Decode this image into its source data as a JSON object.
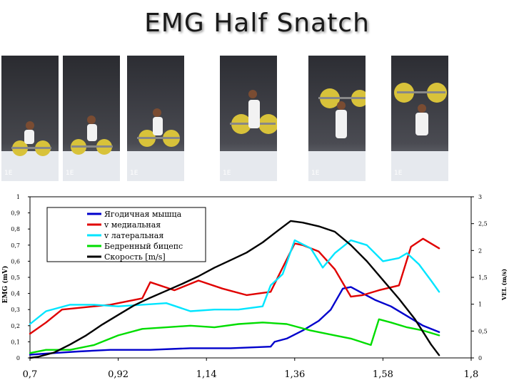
{
  "title": "EMG Half Snatch",
  "photos": [
    {
      "frame_label": "1E"
    },
    {
      "frame_label": "1E"
    },
    {
      "frame_label": "1E"
    },
    {
      "frame_label": "1E"
    },
    {
      "frame_label": "1E"
    },
    {
      "frame_label": "1E"
    }
  ],
  "colors": {
    "blue": "#0000cc",
    "red": "#e00000",
    "cyan": "#00e5ff",
    "green": "#00dd00",
    "black": "#000000"
  },
  "chart_data": {
    "type": "line",
    "title": "",
    "xlabel": "",
    "ylabel": "EMG (mV)",
    "y2label": "VEL (m/s)",
    "xlim": [
      0.7,
      1.8
    ],
    "ylim": [
      0,
      1
    ],
    "y2lim": [
      0,
      3
    ],
    "x_ticks": [
      "0,7",
      "0,92",
      "1,14",
      "1,36",
      "1,58",
      "1,8"
    ],
    "y_ticks": [
      "0",
      "0,1",
      "0,2",
      "0,3",
      "0,4",
      "0,5",
      "0,6",
      "0,7",
      "0,8",
      "0,9",
      "1"
    ],
    "y2_ticks": [
      "0",
      "0,5",
      "1",
      "1,5",
      "2",
      "2,5",
      "3"
    ],
    "legend_position": "top-left",
    "grid": false,
    "series": [
      {
        "name": "Ягодичная мышца",
        "axis": "left",
        "color": "#0000cc",
        "x": [
          0.7,
          0.76,
          0.82,
          0.9,
          1.0,
          1.1,
          1.2,
          1.3,
          1.31,
          1.34,
          1.38,
          1.42,
          1.45,
          1.48,
          1.5,
          1.53,
          1.56,
          1.6,
          1.64,
          1.68,
          1.72
        ],
        "y": [
          0.02,
          0.03,
          0.04,
          0.05,
          0.05,
          0.06,
          0.06,
          0.07,
          0.1,
          0.12,
          0.17,
          0.23,
          0.3,
          0.43,
          0.44,
          0.4,
          0.36,
          0.32,
          0.26,
          0.2,
          0.16
        ]
      },
      {
        "name": "v медиальная",
        "axis": "left",
        "color": "#e00000",
        "x": [
          0.7,
          0.74,
          0.78,
          0.82,
          0.86,
          0.9,
          0.94,
          0.98,
          1.0,
          1.06,
          1.12,
          1.18,
          1.24,
          1.3,
          1.32,
          1.36,
          1.38,
          1.42,
          1.46,
          1.5,
          1.53,
          1.57,
          1.62,
          1.65,
          1.68,
          1.72
        ],
        "y": [
          0.15,
          0.22,
          0.3,
          0.31,
          0.32,
          0.33,
          0.35,
          0.37,
          0.47,
          0.42,
          0.48,
          0.43,
          0.39,
          0.41,
          0.51,
          0.71,
          0.7,
          0.66,
          0.55,
          0.38,
          0.39,
          0.42,
          0.45,
          0.69,
          0.74,
          0.68
        ]
      },
      {
        "name": "v латеральная",
        "axis": "left",
        "color": "#00e5ff",
        "x": [
          0.7,
          0.74,
          0.8,
          0.86,
          0.92,
          0.98,
          1.04,
          1.1,
          1.16,
          1.22,
          1.28,
          1.3,
          1.33,
          1.36,
          1.4,
          1.43,
          1.46,
          1.5,
          1.54,
          1.58,
          1.62,
          1.64,
          1.67,
          1.7,
          1.72
        ],
        "y": [
          0.21,
          0.29,
          0.33,
          0.33,
          0.32,
          0.33,
          0.34,
          0.29,
          0.3,
          0.3,
          0.32,
          0.45,
          0.52,
          0.73,
          0.68,
          0.56,
          0.65,
          0.73,
          0.7,
          0.6,
          0.62,
          0.65,
          0.58,
          0.48,
          0.41
        ]
      },
      {
        "name": "Бедренный бицепс",
        "axis": "left",
        "color": "#00dd00",
        "x": [
          0.7,
          0.74,
          0.8,
          0.86,
          0.92,
          0.98,
          1.04,
          1.1,
          1.16,
          1.22,
          1.28,
          1.34,
          1.4,
          1.46,
          1.5,
          1.55,
          1.57,
          1.6,
          1.64,
          1.68,
          1.72
        ],
        "y": [
          0.03,
          0.05,
          0.05,
          0.08,
          0.14,
          0.18,
          0.19,
          0.2,
          0.19,
          0.21,
          0.22,
          0.21,
          0.17,
          0.14,
          0.12,
          0.08,
          0.24,
          0.22,
          0.19,
          0.17,
          0.14
        ]
      },
      {
        "name": "Скорость [m/s]",
        "axis": "right",
        "color": "#000000",
        "x": [
          0.7,
          0.72,
          0.76,
          0.8,
          0.84,
          0.88,
          0.92,
          0.96,
          1.0,
          1.04,
          1.08,
          1.12,
          1.16,
          1.2,
          1.24,
          1.28,
          1.32,
          1.35,
          1.38,
          1.42,
          1.46,
          1.5,
          1.54,
          1.58,
          1.62,
          1.66,
          1.7,
          1.72
        ],
        "y": [
          0.0,
          0.02,
          0.1,
          0.25,
          0.42,
          0.62,
          0.8,
          0.98,
          1.12,
          1.25,
          1.38,
          1.52,
          1.68,
          1.82,
          1.96,
          2.15,
          2.38,
          2.55,
          2.52,
          2.45,
          2.35,
          2.1,
          1.8,
          1.45,
          1.1,
          0.72,
          0.25,
          0.05
        ]
      }
    ]
  }
}
